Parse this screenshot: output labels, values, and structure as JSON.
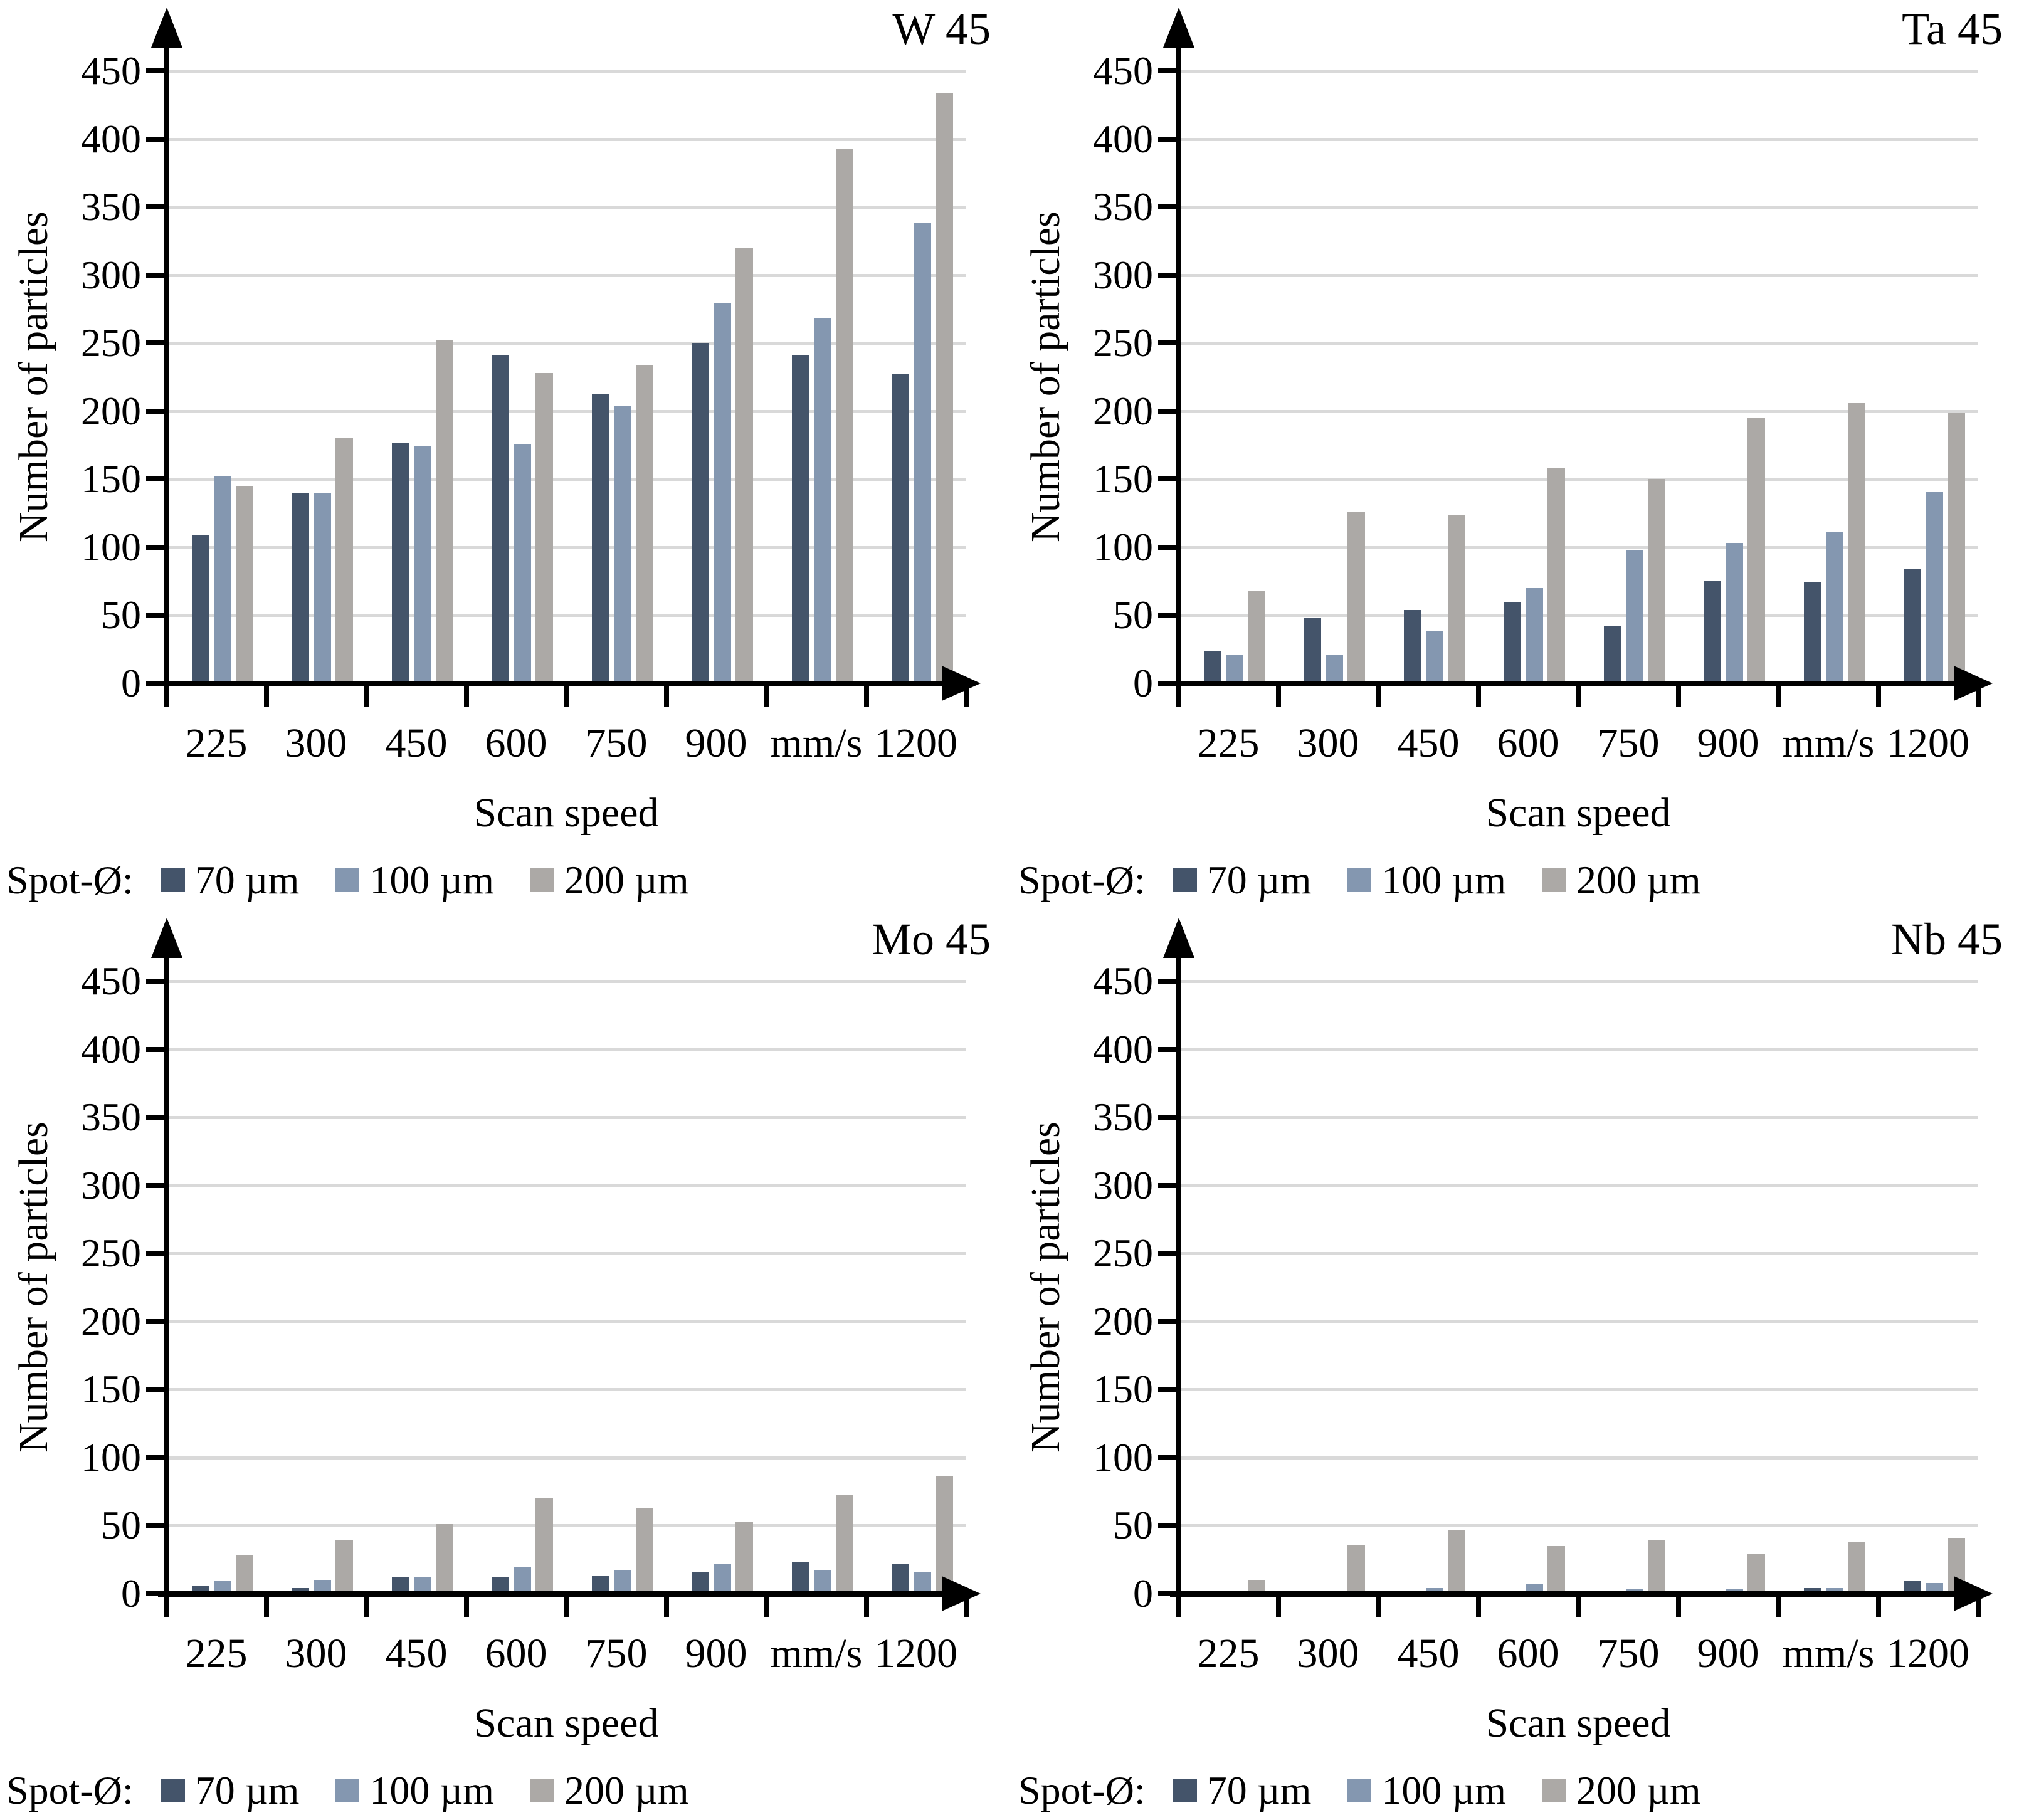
{
  "colors": {
    "series": [
      "#44546A",
      "#8497B0",
      "#ACA9A6"
    ],
    "gridline": "#D9D9D9",
    "axis": "#000000",
    "background": "#FFFFFF"
  },
  "legend": {
    "prefix": "Spot-Ø:",
    "items": [
      "70 µm",
      "100 µm",
      "200 µm"
    ]
  },
  "axes": {
    "ylabel": "Number of particles",
    "xlabel": "Scan speed",
    "ylim": [
      0,
      450
    ],
    "yticks": [
      0,
      50,
      100,
      150,
      200,
      250,
      300,
      350,
      400,
      450
    ],
    "categories": [
      "225",
      "300",
      "450",
      "600",
      "750",
      "900",
      "mm/s",
      "1200"
    ]
  },
  "chart_data": [
    {
      "type": "bar",
      "title": "W 45",
      "xlabel": "Scan speed",
      "ylabel": "Number of particles",
      "ylim": [
        0,
        450
      ],
      "grid": true,
      "legend_position": "bottom",
      "categories": [
        "225",
        "300",
        "450",
        "600",
        "750",
        "900",
        "mm/s",
        "1200"
      ],
      "series": [
        {
          "name": "70 µm",
          "values": [
            109,
            140,
            177,
            241,
            213,
            250,
            241,
            227
          ]
        },
        {
          "name": "100 µm",
          "values": [
            152,
            140,
            174,
            176,
            204,
            279,
            268,
            338
          ]
        },
        {
          "name": "200 µm",
          "values": [
            145,
            180,
            252,
            228,
            234,
            320,
            393,
            434
          ]
        }
      ]
    },
    {
      "type": "bar",
      "title": "Ta 45",
      "xlabel": "Scan speed",
      "ylabel": "Number of particles",
      "ylim": [
        0,
        450
      ],
      "grid": true,
      "legend_position": "bottom",
      "categories": [
        "225",
        "300",
        "450",
        "600",
        "750",
        "900",
        "mm/s",
        "1200"
      ],
      "series": [
        {
          "name": "70 µm",
          "values": [
            24,
            48,
            54,
            60,
            42,
            75,
            74,
            84
          ]
        },
        {
          "name": "100 µm",
          "values": [
            21,
            21,
            38,
            70,
            98,
            103,
            111,
            141
          ]
        },
        {
          "name": "200 µm",
          "values": [
            68,
            126,
            124,
            158,
            150,
            195,
            206,
            199
          ]
        }
      ]
    },
    {
      "type": "bar",
      "title": "Mo 45",
      "xlabel": "Scan speed",
      "ylabel": "Number of particles",
      "ylim": [
        0,
        450
      ],
      "grid": true,
      "legend_position": "bottom",
      "categories": [
        "225",
        "300",
        "450",
        "600",
        "750",
        "900",
        "mm/s",
        "1200"
      ],
      "series": [
        {
          "name": "70 µm",
          "values": [
            6,
            4,
            12,
            12,
            13,
            16,
            23,
            22
          ]
        },
        {
          "name": "100 µm",
          "values": [
            9,
            10,
            12,
            20,
            17,
            22,
            17,
            16
          ]
        },
        {
          "name": "200 µm",
          "values": [
            28,
            39,
            51,
            70,
            63,
            53,
            73,
            86
          ]
        }
      ]
    },
    {
      "type": "bar",
      "title": "Nb 45",
      "xlabel": "Scan speed",
      "ylabel": "Number of particles",
      "ylim": [
        0,
        450
      ],
      "grid": true,
      "legend_position": "bottom",
      "categories": [
        "225",
        "300",
        "450",
        "600",
        "750",
        "900",
        "mm/s",
        "1200"
      ],
      "series": [
        {
          "name": "70 µm",
          "values": [
            0,
            0,
            0,
            0,
            0,
            0,
            4,
            9
          ]
        },
        {
          "name": "100 µm",
          "values": [
            0,
            2,
            4,
            7,
            3,
            3,
            4,
            8
          ]
        },
        {
          "name": "200 µm",
          "values": [
            10,
            36,
            47,
            35,
            39,
            29,
            38,
            41
          ]
        }
      ]
    }
  ]
}
